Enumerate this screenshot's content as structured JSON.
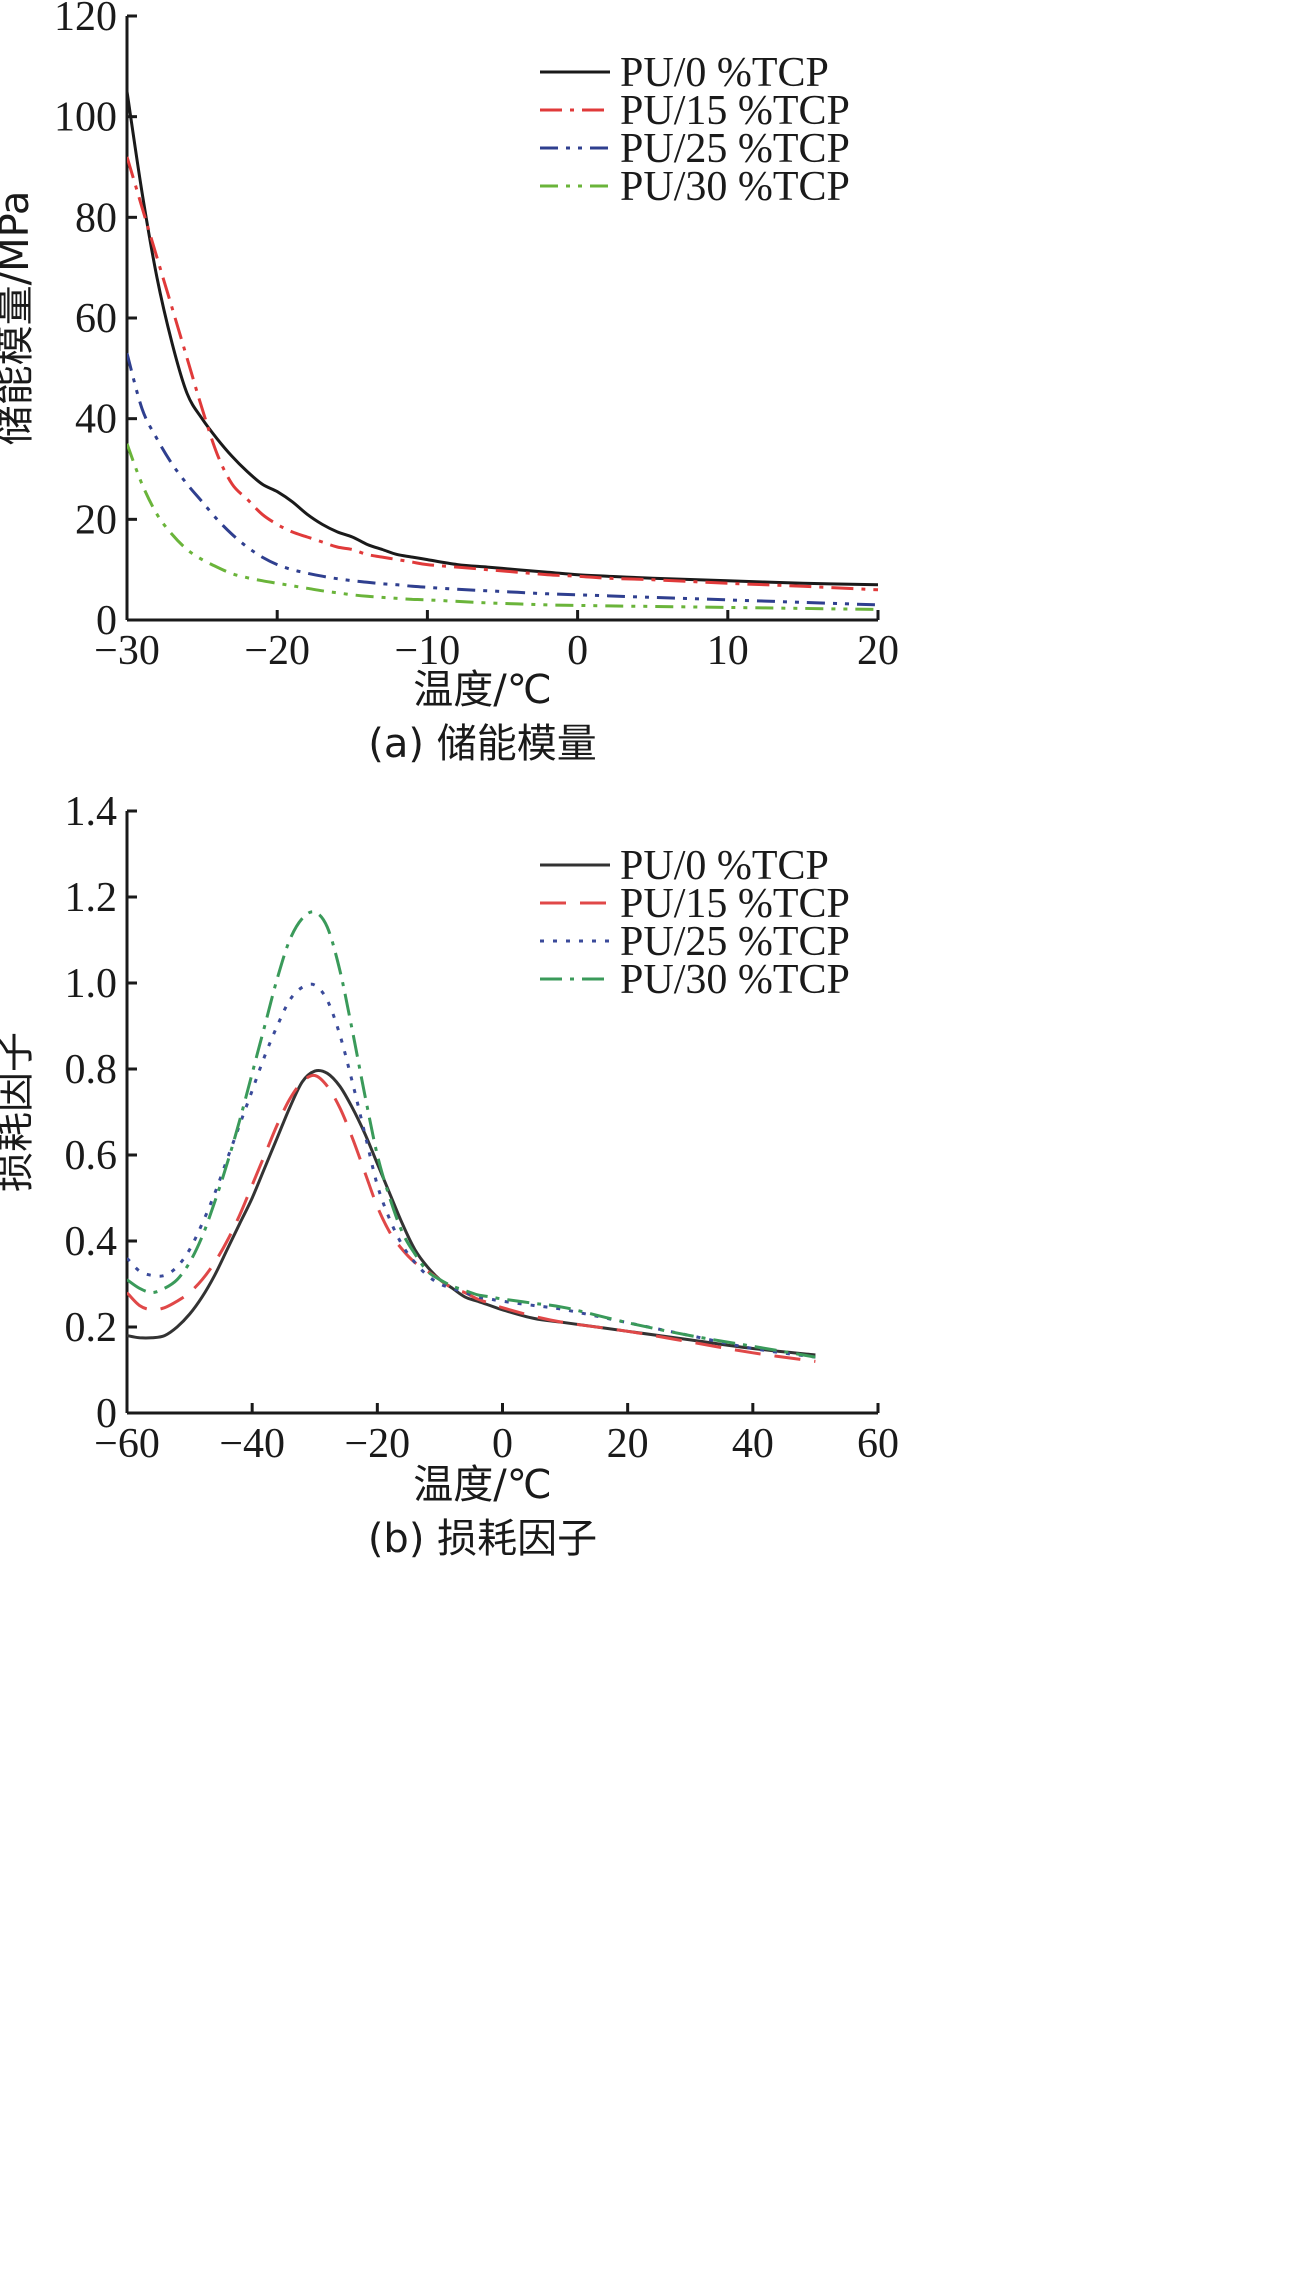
{
  "chart_data": [
    {
      "type": "line",
      "xlabel": "温度/℃",
      "ylabel": "储能模量/MPa",
      "caption": "(a) 储能模量",
      "xlim": [
        -30,
        20
      ],
      "ylim": [
        0,
        120
      ],
      "xticks": [
        -30,
        -20,
        -10,
        0,
        10,
        20
      ],
      "yticks": [
        0,
        20,
        40,
        60,
        80,
        100,
        120
      ],
      "xtick_labels": [
        "−30",
        "−20",
        "−10",
        "0",
        "10",
        "20"
      ],
      "ytick_labels": [
        "0",
        "20",
        "40",
        "60",
        "80",
        "100",
        "120"
      ],
      "legend_position": "top-right",
      "series": [
        {
          "name": "PU/0 %TCP",
          "color": "#1a1a1a",
          "dash": "solid",
          "x": [
            -30,
            -29,
            -28,
            -27,
            -26,
            -25,
            -24,
            -23,
            -22,
            -21,
            -20,
            -19,
            -18,
            -17,
            -16,
            -15,
            -14,
            -13,
            -12,
            -11,
            -10,
            -8,
            -6,
            -4,
            -2,
            0,
            2,
            5,
            10,
            15,
            20
          ],
          "y": [
            105,
            85,
            68,
            55,
            45,
            40,
            36,
            32.5,
            29.5,
            27,
            25.5,
            23.5,
            21,
            19,
            17.5,
            16.5,
            15,
            14,
            13,
            12.5,
            12,
            11,
            10.5,
            10,
            9.5,
            9,
            8.7,
            8.3,
            7.8,
            7.3,
            7
          ]
        },
        {
          "name": "PU/15 %TCP",
          "color": "#e03a3a",
          "dash": "dash-dot",
          "x": [
            -30,
            -29,
            -28,
            -27,
            -26,
            -25,
            -24,
            -23,
            -22,
            -21,
            -20,
            -19,
            -18,
            -17,
            -16,
            -15,
            -14,
            -13,
            -12,
            -11,
            -10,
            -8,
            -6,
            -4,
            -2,
            0,
            2,
            5,
            10,
            15,
            20
          ],
          "y": [
            92,
            82,
            72,
            62,
            52,
            42,
            33,
            27,
            24,
            21,
            19,
            17.5,
            16.5,
            15.5,
            14.5,
            14,
            13,
            12.5,
            12,
            11.5,
            11,
            10.5,
            10,
            9.5,
            9,
            8.7,
            8.3,
            8,
            7.3,
            6.7,
            6
          ]
        },
        {
          "name": "PU/25 %TCP",
          "color": "#2f3f8f",
          "dash": "dash-dot-dot",
          "x": [
            -30,
            -29,
            -28,
            -27,
            -26,
            -25,
            -24,
            -23,
            -22,
            -21,
            -20,
            -19,
            -18,
            -17,
            -16,
            -15,
            -14,
            -13,
            -12,
            -11,
            -10,
            -8,
            -6,
            -4,
            -2,
            0,
            2,
            5,
            10,
            15,
            20
          ],
          "y": [
            53,
            42,
            36,
            31,
            27,
            23.5,
            20,
            17,
            14.5,
            12.5,
            11,
            10,
            9.3,
            8.7,
            8.2,
            7.8,
            7.5,
            7.2,
            7,
            6.7,
            6.5,
            6.1,
            5.8,
            5.5,
            5.2,
            5,
            4.8,
            4.5,
            4,
            3.5,
            3
          ]
        },
        {
          "name": "PU/30 %TCP",
          "color": "#6ab43a",
          "dash": "dash-dot-dot",
          "x": [
            -30,
            -29,
            -28,
            -27,
            -26,
            -25,
            -24,
            -23,
            -22,
            -21,
            -20,
            -19,
            -18,
            -17,
            -16,
            -15,
            -14,
            -13,
            -12,
            -11,
            -10,
            -8,
            -6,
            -4,
            -2,
            0,
            2,
            5,
            10,
            15,
            20
          ],
          "y": [
            35,
            27,
            21,
            17,
            14,
            12,
            10.5,
            9.2,
            8.4,
            7.8,
            7.3,
            6.8,
            6.3,
            5.8,
            5.4,
            5,
            4.7,
            4.5,
            4.3,
            4.1,
            4,
            3.7,
            3.4,
            3.2,
            3,
            2.9,
            2.8,
            2.7,
            2.5,
            2.3,
            2.1
          ]
        }
      ]
    },
    {
      "type": "line",
      "xlabel": "温度/℃",
      "ylabel": "损耗因子",
      "caption": "(b) 损耗因子",
      "xlim": [
        -60,
        60
      ],
      "ylim": [
        0,
        1.4
      ],
      "xticks": [
        -60,
        -40,
        -20,
        0,
        20,
        40,
        60
      ],
      "yticks": [
        0,
        0.2,
        0.4,
        0.6,
        0.8,
        1.0,
        1.2,
        1.4
      ],
      "xtick_labels": [
        "−60",
        "−40",
        "−20",
        "0",
        "20",
        "40",
        "60"
      ],
      "ytick_labels": [
        "0",
        "0.2",
        "0.4",
        "0.6",
        "0.8",
        "1.0",
        "1.2",
        "1.4"
      ],
      "legend_position": "top-right",
      "series": [
        {
          "name": "PU/0 %TCP",
          "color": "#333333",
          "dash": "solid",
          "x": [
            -60,
            -58,
            -56,
            -54,
            -52,
            -50,
            -48,
            -46,
            -44,
            -42,
            -40,
            -38,
            -36,
            -34,
            -32,
            -30,
            -28,
            -26,
            -24,
            -22,
            -20,
            -18,
            -16,
            -14,
            -12,
            -10,
            -8,
            -6,
            -4,
            -2,
            0,
            5,
            10,
            20,
            30,
            40,
            50
          ],
          "y": [
            0.18,
            0.175,
            0.175,
            0.18,
            0.2,
            0.23,
            0.27,
            0.32,
            0.38,
            0.44,
            0.5,
            0.57,
            0.64,
            0.71,
            0.77,
            0.795,
            0.79,
            0.76,
            0.71,
            0.65,
            0.58,
            0.51,
            0.44,
            0.38,
            0.34,
            0.31,
            0.29,
            0.27,
            0.26,
            0.25,
            0.24,
            0.22,
            0.21,
            0.19,
            0.17,
            0.15,
            0.135
          ]
        },
        {
          "name": "PU/15 %TCP",
          "color": "#e04848",
          "dash": "dash",
          "x": [
            -60,
            -58,
            -56,
            -54,
            -52,
            -50,
            -48,
            -46,
            -44,
            -42,
            -40,
            -38,
            -36,
            -34,
            -32,
            -30,
            -28,
            -26,
            -24,
            -22,
            -20,
            -18,
            -16,
            -14,
            -12,
            -10,
            -8,
            -6,
            -4,
            -2,
            0,
            5,
            10,
            20,
            30,
            40,
            50
          ],
          "y": [
            0.28,
            0.25,
            0.24,
            0.245,
            0.26,
            0.28,
            0.31,
            0.35,
            0.4,
            0.46,
            0.53,
            0.6,
            0.67,
            0.73,
            0.77,
            0.785,
            0.76,
            0.71,
            0.64,
            0.56,
            0.48,
            0.42,
            0.38,
            0.35,
            0.33,
            0.31,
            0.29,
            0.28,
            0.265,
            0.255,
            0.245,
            0.225,
            0.21,
            0.19,
            0.165,
            0.14,
            0.12
          ]
        },
        {
          "name": "PU/25 %TCP",
          "color": "#3a4a9a",
          "dash": "dot",
          "x": [
            -60,
            -58,
            -56,
            -54,
            -52,
            -50,
            -48,
            -46,
            -44,
            -42,
            -40,
            -38,
            -36,
            -34,
            -32,
            -30,
            -28,
            -26,
            -24,
            -22,
            -20,
            -18,
            -16,
            -14,
            -12,
            -10,
            -8,
            -6,
            -4,
            -2,
            0,
            5,
            10,
            20,
            30,
            40,
            50
          ],
          "y": [
            0.36,
            0.33,
            0.32,
            0.32,
            0.34,
            0.38,
            0.44,
            0.51,
            0.59,
            0.67,
            0.75,
            0.83,
            0.9,
            0.96,
            0.99,
            0.995,
            0.96,
            0.88,
            0.77,
            0.65,
            0.53,
            0.45,
            0.39,
            0.35,
            0.32,
            0.3,
            0.29,
            0.28,
            0.27,
            0.265,
            0.26,
            0.25,
            0.24,
            0.21,
            0.18,
            0.15,
            0.13
          ]
        },
        {
          "name": "PU/30 %TCP",
          "color": "#3a9a5a",
          "dash": "dash-dot",
          "x": [
            -60,
            -58,
            -56,
            -54,
            -52,
            -50,
            -48,
            -46,
            -44,
            -42,
            -40,
            -38,
            -36,
            -34,
            -32,
            -30,
            -28,
            -26,
            -24,
            -22,
            -20,
            -18,
            -16,
            -14,
            -12,
            -10,
            -8,
            -6,
            -4,
            -2,
            0,
            5,
            10,
            20,
            30,
            40,
            50
          ],
          "y": [
            0.31,
            0.29,
            0.28,
            0.29,
            0.31,
            0.35,
            0.41,
            0.49,
            0.58,
            0.68,
            0.79,
            0.9,
            1.01,
            1.1,
            1.15,
            1.165,
            1.13,
            1.03,
            0.89,
            0.74,
            0.6,
            0.5,
            0.42,
            0.37,
            0.33,
            0.31,
            0.295,
            0.285,
            0.275,
            0.27,
            0.265,
            0.255,
            0.245,
            0.21,
            0.18,
            0.155,
            0.13
          ]
        }
      ]
    }
  ]
}
